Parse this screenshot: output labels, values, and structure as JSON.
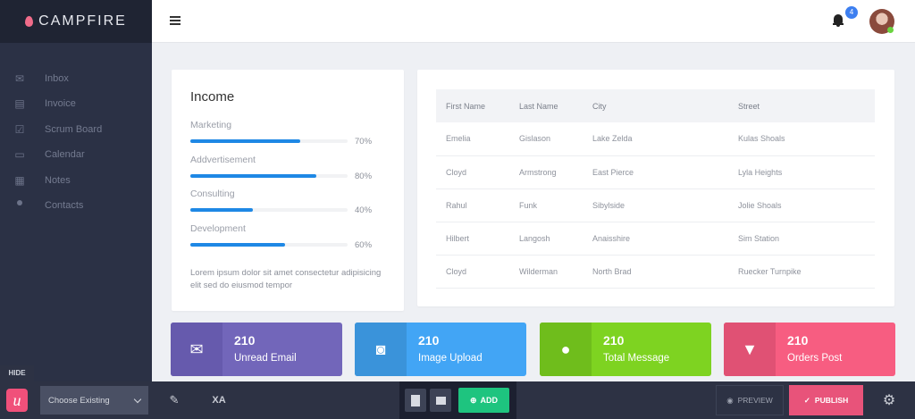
{
  "brand": {
    "name": "CAMPFIRE",
    "logo_color": "#f06c8a"
  },
  "sidebar": {
    "items": [
      {
        "label": "Inbox",
        "icon": "mail-icon"
      },
      {
        "label": "Invoice",
        "icon": "clipboard-icon"
      },
      {
        "label": "Scrum Board",
        "icon": "checkbox-icon"
      },
      {
        "label": "Calendar",
        "icon": "calendar-icon"
      },
      {
        "label": "Notes",
        "icon": "notes-icon"
      },
      {
        "label": "Contacts",
        "icon": "contacts-icon"
      }
    ]
  },
  "header": {
    "notifications_count": "4"
  },
  "income": {
    "title": "Income",
    "items": [
      {
        "label": "Marketing",
        "percent": 70,
        "percent_label": "70%"
      },
      {
        "label": "Addvertisement",
        "percent": 80,
        "percent_label": "80%"
      },
      {
        "label": "Consulting",
        "percent": 40,
        "percent_label": "40%"
      },
      {
        "label": "Development",
        "percent": 60,
        "percent_label": "60%"
      }
    ],
    "description": "Lorem ipsum dolor sit amet consectetur adipisicing elit sed do eiusmod tempor"
  },
  "table": {
    "columns": [
      "First Name",
      "Last Name",
      "City",
      "Street"
    ],
    "rows": [
      [
        "Emelia",
        "Gislason",
        "Lake Zelda",
        "Kulas Shoals"
      ],
      [
        "Cloyd",
        "Armstrong",
        "East Pierce",
        "Lyla Heights"
      ],
      [
        "Rahul",
        "Funk",
        "Sibylside",
        "Jolie Shoals"
      ],
      [
        "Hilbert",
        "Langosh",
        "Anaisshire",
        "Sim Station"
      ],
      [
        "Cloyd",
        "Wilderman",
        "North Brad",
        "Ruecker Turnpike"
      ]
    ]
  },
  "stats": [
    {
      "value": "210",
      "label": "Unread Email",
      "icon": "email-icon",
      "color": "#7266ba",
      "dark": "#665aad"
    },
    {
      "value": "210",
      "label": "Image Upload",
      "icon": "camera-icon",
      "color": "#42a5f5",
      "dark": "#3a93da"
    },
    {
      "value": "210",
      "label": "Total Message",
      "icon": "chat-icon",
      "color": "#7ed321",
      "dark": "#6fbd1c"
    },
    {
      "value": "210",
      "label": "Orders Post",
      "icon": "cart-icon",
      "color": "#f75d81",
      "dark": "#e05174"
    }
  ],
  "toolbar": {
    "hide": "HIDE",
    "select": "Choose Existing",
    "add": "ADD",
    "preview": "PREVIEW",
    "publish": "PUBLISH"
  }
}
